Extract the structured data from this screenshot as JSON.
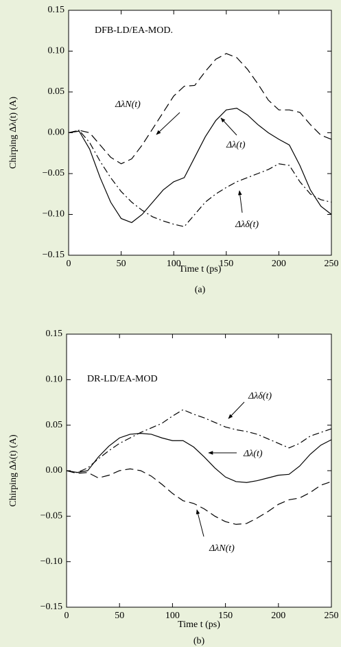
{
  "chart_data": [
    {
      "type": "line",
      "note": "DFB-LD/EA-MOD.",
      "panel_label": "(a)",
      "x_label": "Time t (ps)",
      "y_label": "Chirping Δλ(t) (A)",
      "xlim": [
        0,
        250
      ],
      "xticks": [
        0,
        50,
        100,
        150,
        200,
        250
      ],
      "ylim": [
        -0.15,
        0.15
      ],
      "yticks": [
        {
          "value": -0.15,
          "label": "−0.15"
        },
        {
          "value": -0.1,
          "label": "−0.10"
        },
        {
          "value": -0.05,
          "label": "−0.05"
        },
        {
          "value": 0,
          "label": "0.00"
        },
        {
          "value": 0.05,
          "label": "0.05"
        },
        {
          "value": 0.1,
          "label": "0.10"
        },
        {
          "value": 0.15,
          "label": "0.15"
        }
      ],
      "x": [
        0,
        10,
        20,
        30,
        40,
        50,
        60,
        70,
        80,
        90,
        100,
        110,
        120,
        130,
        140,
        150,
        160,
        170,
        180,
        190,
        200,
        210,
        220,
        230,
        240,
        250
      ],
      "series": [
        {
          "name": "ΔλN(t)",
          "color": "#000000",
          "style": "dashed",
          "values": [
            0,
            0.003,
            0,
            -0.015,
            -0.03,
            -0.038,
            -0.032,
            -0.015,
            0.005,
            0.025,
            0.045,
            0.057,
            0.058,
            0.075,
            0.09,
            0.097,
            0.092,
            0.078,
            0.06,
            0.04,
            0.028,
            0.028,
            0.025,
            0.01,
            -0.003,
            -0.008
          ]
        },
        {
          "name": "Δλ(t)",
          "color": "#000000",
          "style": "solid",
          "values": [
            0,
            0.002,
            -0.02,
            -0.055,
            -0.085,
            -0.105,
            -0.11,
            -0.1,
            -0.085,
            -0.07,
            -0.06,
            -0.055,
            -0.03,
            -0.005,
            0.015,
            0.028,
            0.03,
            0.022,
            0.01,
            0,
            -0.008,
            -0.015,
            -0.04,
            -0.07,
            -0.09,
            -0.1
          ]
        },
        {
          "name": "Δλδ(t)",
          "color": "#000000",
          "style": "dashdot",
          "values": [
            0,
            0.003,
            -0.012,
            -0.035,
            -0.055,
            -0.072,
            -0.085,
            -0.095,
            -0.103,
            -0.108,
            -0.112,
            -0.115,
            -0.1,
            -0.085,
            -0.075,
            -0.067,
            -0.06,
            -0.055,
            -0.05,
            -0.045,
            -0.038,
            -0.04,
            -0.06,
            -0.075,
            -0.082,
            -0.085
          ]
        }
      ]
    },
    {
      "type": "line",
      "note": "DR-LD/EA-MOD",
      "panel_label": "(b)",
      "x_label": "Time t (ps)",
      "y_label": "Chirping Δλ(t) (A)",
      "xlim": [
        0,
        250
      ],
      "xticks": [
        0,
        50,
        100,
        150,
        200,
        250
      ],
      "ylim": [
        -0.15,
        0.15
      ],
      "yticks": [
        {
          "value": -0.15,
          "label": "−0.15"
        },
        {
          "value": -0.1,
          "label": "−0.10"
        },
        {
          "value": -0.05,
          "label": "−0.05"
        },
        {
          "value": 0,
          "label": "0.00"
        },
        {
          "value": 0.05,
          "label": "0.05"
        },
        {
          "value": 0.1,
          "label": "0.10"
        },
        {
          "value": 0.15,
          "label": "0.15"
        }
      ],
      "x": [
        0,
        10,
        20,
        30,
        40,
        50,
        60,
        70,
        80,
        90,
        100,
        110,
        120,
        130,
        140,
        150,
        160,
        170,
        180,
        190,
        200,
        210,
        220,
        230,
        240,
        250
      ],
      "series": [
        {
          "name": "ΔλN(t)",
          "color": "#000000",
          "style": "dashed",
          "values": [
            0,
            -0.003,
            -0.002,
            -0.008,
            -0.005,
            0,
            0.002,
            0,
            -0.006,
            -0.015,
            -0.025,
            -0.033,
            -0.036,
            -0.042,
            -0.05,
            -0.056,
            -0.059,
            -0.058,
            -0.052,
            -0.045,
            -0.037,
            -0.032,
            -0.03,
            -0.024,
            -0.016,
            -0.012
          ]
        },
        {
          "name": "Δλ(t)",
          "color": "#000000",
          "style": "solid",
          "values": [
            0,
            -0.002,
            0,
            0.015,
            0.027,
            0.036,
            0.04,
            0.041,
            0.04,
            0.036,
            0.033,
            0.033,
            0.026,
            0.015,
            0.003,
            -0.007,
            -0.012,
            -0.013,
            -0.011,
            -0.008,
            -0.005,
            -0.004,
            0.005,
            0.018,
            0.028,
            0.034
          ]
        },
        {
          "name": "Δλδ(t)",
          "color": "#000000",
          "style": "dashdot",
          "values": [
            0,
            -0.002,
            0.003,
            0.013,
            0.022,
            0.03,
            0.036,
            0.042,
            0.047,
            0.052,
            0.06,
            0.067,
            0.062,
            0.058,
            0.053,
            0.048,
            0.045,
            0.043,
            0.04,
            0.035,
            0.03,
            0.025,
            0.03,
            0.038,
            0.042,
            0.046
          ]
        }
      ]
    }
  ]
}
